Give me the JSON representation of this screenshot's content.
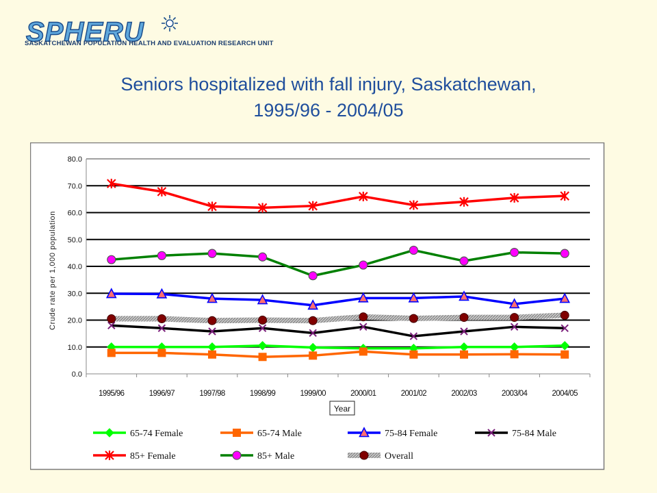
{
  "logo": {
    "wordmark": "SPHERU",
    "tagline": "SASKATCHEWAN POPULATION HEALTH AND EVALUATION RESEARCH UNIT"
  },
  "slide": {
    "title_line1": "Seniors hospitalized with fall injury, Saskatchewan,",
    "title_line2": "1995/96 - 2004/05"
  },
  "chart_data": {
    "type": "line",
    "title": "",
    "xlabel": "Year",
    "ylabel": "Crude rate per 1,000 population",
    "ylim": [
      0,
      80
    ],
    "yticks": [
      "0.0",
      "10.0",
      "20.0",
      "30.0",
      "40.0",
      "50.0",
      "60.0",
      "70.0",
      "80.0"
    ],
    "grid": true,
    "legend_position": "bottom",
    "categories": [
      "1995/96",
      "1996/97",
      "1997/98",
      "1998/99",
      "1999/00",
      "2000/01",
      "2001/02",
      "2002/03",
      "2003/04",
      "2004/05"
    ],
    "series": [
      {
        "name": "65-74 Female",
        "color": "#00ff00",
        "marker": "diamond",
        "values": [
          10.0,
          10.0,
          10.0,
          10.5,
          9.8,
          9.5,
          9.5,
          10.0,
          10.0,
          10.5
        ]
      },
      {
        "name": "65-74 Male",
        "color": "#ff6600",
        "marker": "square",
        "values": [
          7.8,
          7.8,
          7.2,
          6.3,
          6.8,
          8.3,
          7.2,
          7.2,
          7.3,
          7.2
        ]
      },
      {
        "name": "75-84 Female",
        "color": "#0000ff",
        "marker": "triangle",
        "values": [
          29.8,
          29.7,
          28.0,
          27.5,
          25.5,
          28.2,
          28.2,
          28.8,
          26.0,
          28.0
        ]
      },
      {
        "name": "75-84 Male",
        "color": "#000000",
        "marker": "x",
        "values": [
          18.0,
          17.0,
          15.8,
          17.0,
          15.2,
          17.5,
          14.0,
          15.8,
          17.5,
          17.0
        ]
      },
      {
        "name": "85+ Female",
        "color": "#ff0000",
        "marker": "star",
        "values": [
          70.8,
          67.8,
          62.3,
          61.8,
          62.5,
          66.0,
          62.8,
          64.0,
          65.5,
          66.2
        ]
      },
      {
        "name": "85+ Male",
        "color": "#008000",
        "marker": "circle-magenta",
        "values": [
          42.5,
          44.0,
          44.8,
          43.5,
          36.5,
          40.5,
          46.0,
          42.0,
          45.2,
          44.8
        ]
      },
      {
        "name": "Overall",
        "color": "#888888",
        "marker": "circle-darkred",
        "values": [
          20.5,
          20.5,
          19.8,
          20.0,
          19.8,
          21.2,
          20.6,
          21.0,
          21.0,
          21.8
        ]
      }
    ]
  }
}
